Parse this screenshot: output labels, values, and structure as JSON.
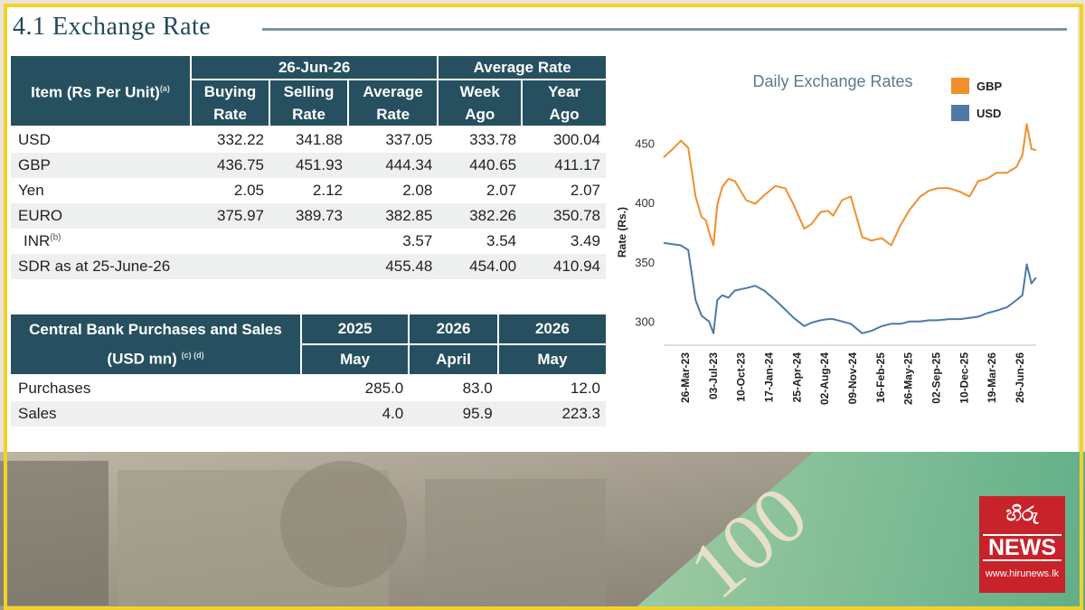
{
  "title": "4.1 Exchange Rate",
  "rates_table": {
    "item_header": "Item (Rs Per Unit)",
    "item_note": "(a)",
    "date_header": "26-Jun-26",
    "avg_header": "Average Rate",
    "sub_headers": {
      "buying": [
        "Buying",
        "Rate"
      ],
      "selling": [
        "Selling",
        "Rate"
      ],
      "average": [
        "Average",
        "Rate"
      ],
      "week": [
        "Week",
        "Ago"
      ],
      "year": [
        "Year",
        "Ago"
      ]
    },
    "rows": [
      {
        "item": "USD",
        "note": "",
        "buying": "332.22",
        "selling": "341.88",
        "average": "337.05",
        "week": "333.78",
        "year": "300.04"
      },
      {
        "item": "GBP",
        "note": "",
        "buying": "436.75",
        "selling": "451.93",
        "average": "444.34",
        "week": "440.65",
        "year": "411.17"
      },
      {
        "item": "Yen",
        "note": "",
        "buying": "2.05",
        "selling": "2.12",
        "average": "2.08",
        "week": "2.07",
        "year": "2.07"
      },
      {
        "item": "EURO",
        "note": "",
        "buying": "375.97",
        "selling": "389.73",
        "average": "382.85",
        "week": "382.26",
        "year": "350.78"
      },
      {
        "item": "INR",
        "note": "(b)",
        "buying": "",
        "selling": "",
        "average": "3.57",
        "week": "3.54",
        "year": "3.49"
      },
      {
        "item": "SDR as at 25-June-26",
        "note": "",
        "buying": "",
        "selling": "",
        "average": "455.48",
        "week": "454.00",
        "year": "410.94"
      }
    ]
  },
  "cb_table": {
    "header_lines": [
      "Central Bank Purchases and Sales",
      "(USD mn)"
    ],
    "header_note": "(c) (d)",
    "columns": [
      {
        "year": "2025",
        "month": "May"
      },
      {
        "year": "2026",
        "month": "April"
      },
      {
        "year": "2026",
        "month": "May"
      }
    ],
    "rows": [
      {
        "label": "Purchases",
        "values": [
          "285.0",
          "83.0",
          "12.0"
        ]
      },
      {
        "label": "Sales",
        "values": [
          "4.0",
          "95.9",
          "223.3"
        ]
      }
    ]
  },
  "chart_data": {
    "type": "line",
    "title": "Daily Exchange Rates",
    "ylabel": "Rate (Rs.)",
    "xlabel": "",
    "ylim": [
      280,
      470
    ],
    "yticks": [
      300,
      350,
      400,
      450
    ],
    "x_ticks": [
      "26-Mar-23",
      "03-Jul-23",
      "10-Oct-23",
      "17-Jan-24",
      "25-Apr-24",
      "02-Aug-24",
      "09-Nov-24",
      "16-Feb-25",
      "26-May-25",
      "02-Sep-25",
      "10-Dec-25",
      "19-Mar-26",
      "26-Jun-26"
    ],
    "legend_position": "top-right",
    "series": [
      {
        "name": "GBP",
        "color": "#f28e2b",
        "x": [
          "2023-01-01",
          "2023-02-01",
          "2023-03-01",
          "2023-03-26",
          "2023-04-20",
          "2023-05-10",
          "2023-05-25",
          "2023-06-05",
          "2023-06-20",
          "2023-07-03",
          "2023-07-20",
          "2023-08-10",
          "2023-09-01",
          "2023-10-10",
          "2023-11-10",
          "2023-12-10",
          "2024-01-17",
          "2024-02-20",
          "2024-03-20",
          "2024-04-25",
          "2024-05-20",
          "2024-06-20",
          "2024-07-15",
          "2024-08-02",
          "2024-09-01",
          "2024-10-01",
          "2024-11-09",
          "2024-12-10",
          "2025-01-15",
          "2025-02-16",
          "2025-03-20",
          "2025-04-20",
          "2025-05-26",
          "2025-06-25",
          "2025-07-25",
          "2025-09-02",
          "2025-10-10",
          "2025-11-10",
          "2025-12-10",
          "2026-01-10",
          "2026-02-10",
          "2026-03-19",
          "2026-04-20",
          "2026-05-10",
          "2026-05-25",
          "2026-06-10",
          "2026-06-26"
        ],
        "y": [
          438,
          445,
          452,
          446,
          405,
          388,
          385,
          375,
          364,
          398,
          413,
          420,
          418,
          402,
          399,
          406,
          414,
          412,
          398,
          378,
          382,
          392,
          393,
          389,
          402,
          405,
          371,
          368,
          370,
          364,
          381,
          394,
          405,
          410,
          412,
          412,
          409,
          405,
          418,
          420,
          425,
          425,
          430,
          440,
          466,
          445,
          444
        ]
      },
      {
        "name": "USD",
        "color": "#4e79a7",
        "x": [
          "2023-01-01",
          "2023-02-01",
          "2023-03-01",
          "2023-03-26",
          "2023-04-20",
          "2023-05-10",
          "2023-05-25",
          "2023-06-05",
          "2023-06-20",
          "2023-07-03",
          "2023-07-20",
          "2023-08-10",
          "2023-09-01",
          "2023-10-10",
          "2023-11-10",
          "2023-12-10",
          "2024-01-17",
          "2024-02-20",
          "2024-03-20",
          "2024-04-25",
          "2024-05-20",
          "2024-06-20",
          "2024-07-15",
          "2024-08-02",
          "2024-09-01",
          "2024-10-01",
          "2024-11-09",
          "2024-12-10",
          "2025-01-15",
          "2025-02-16",
          "2025-03-20",
          "2025-04-20",
          "2025-05-26",
          "2025-06-25",
          "2025-07-25",
          "2025-09-02",
          "2025-10-10",
          "2025-11-10",
          "2025-12-10",
          "2026-01-10",
          "2026-02-10",
          "2026-03-19",
          "2026-04-20",
          "2026-05-10",
          "2026-05-25",
          "2026-06-10",
          "2026-06-26"
        ],
        "y": [
          366,
          365,
          364,
          360,
          318,
          305,
          302,
          300,
          290,
          318,
          322,
          320,
          326,
          328,
          330,
          326,
          318,
          310,
          303,
          296,
          299,
          301,
          302,
          302,
          300,
          298,
          290,
          292,
          296,
          298,
          298,
          300,
          300,
          301,
          301,
          302,
          302,
          303,
          304,
          307,
          309,
          312,
          318,
          322,
          348,
          332,
          337
        ]
      }
    ]
  },
  "logo": {
    "top_text": "හිරු",
    "news_text": "NEWS",
    "url": "www.hirunews.lk"
  }
}
